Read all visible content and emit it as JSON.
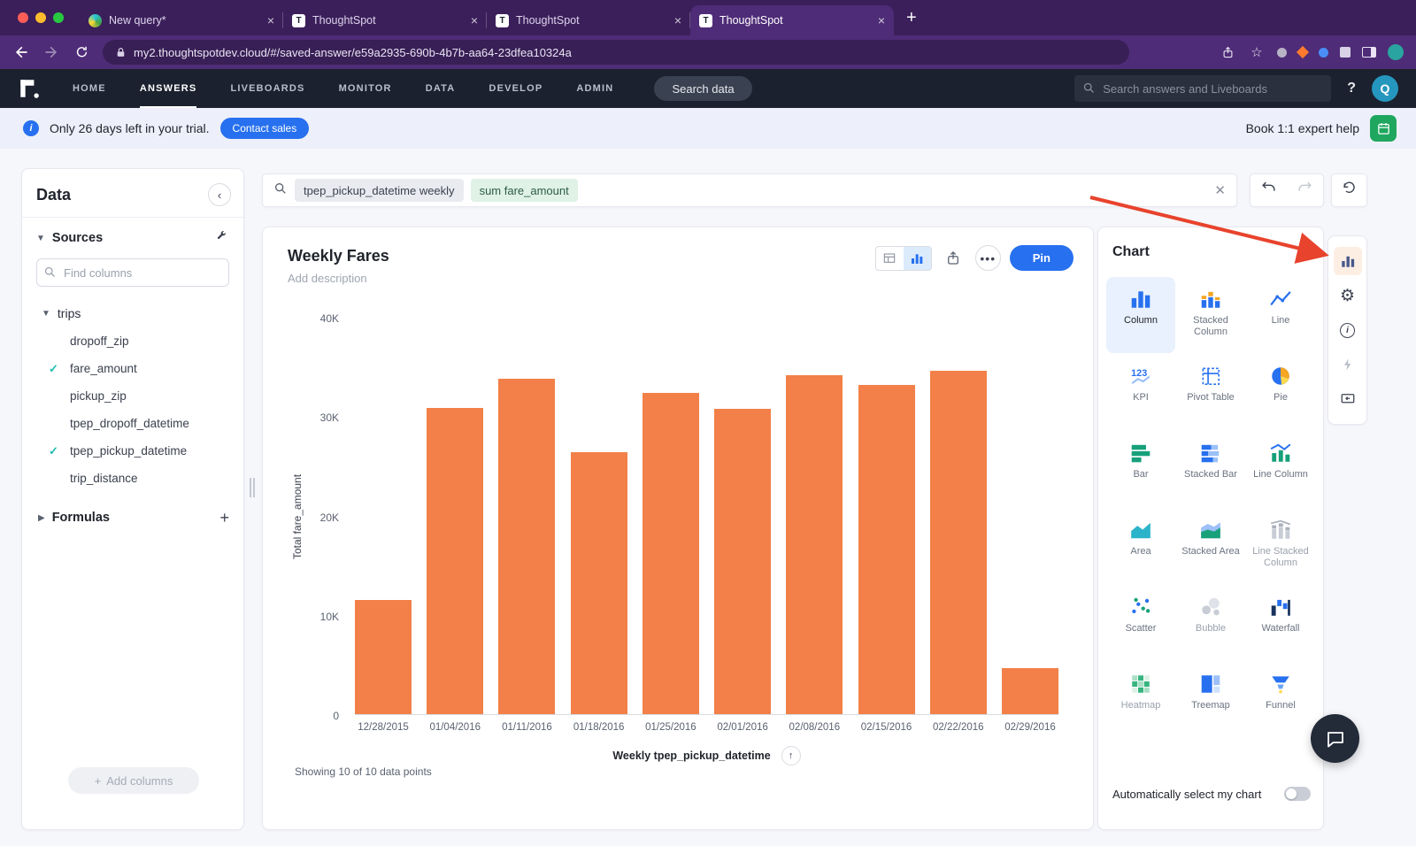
{
  "colors": {
    "accent": "#2770ef",
    "bar": "#f28048",
    "check": "#1fbcaf",
    "arrow": "#e8432d",
    "selected_bg": "#e8f1fd"
  },
  "browser": {
    "tabs": [
      {
        "title": "New query*",
        "icon": "query",
        "active": false
      },
      {
        "title": "ThoughtSpot",
        "icon": "thoughtspot",
        "active": false
      },
      {
        "title": "ThoughtSpot",
        "icon": "thoughtspot",
        "active": false
      },
      {
        "title": "ThoughtSpot",
        "icon": "thoughtspot",
        "active": true
      }
    ],
    "url": "my2.thoughtspotdev.cloud/#/saved-answer/e59a2935-690b-4b7b-aa64-23dfea10324a"
  },
  "nav": {
    "items": [
      {
        "label": "HOME",
        "active": false
      },
      {
        "label": "ANSWERS",
        "active": true
      },
      {
        "label": "LIVEBOARDS",
        "active": false
      },
      {
        "label": "MONITOR",
        "active": false
      },
      {
        "label": "DATA",
        "active": false
      },
      {
        "label": "DEVELOP",
        "active": false
      },
      {
        "label": "ADMIN",
        "active": false
      }
    ],
    "search_data_label": "Search data",
    "global_search_placeholder": "Search answers and Liveboards",
    "avatar_initial": "Q"
  },
  "trial": {
    "message": "Only 26 days left in your trial.",
    "cta": "Contact sales",
    "help": "Book 1:1 expert help"
  },
  "sidebar": {
    "title": "Data",
    "sources_label": "Sources",
    "find_placeholder": "Find columns",
    "table_name": "trips",
    "columns": [
      {
        "name": "dropoff_zip",
        "checked": false
      },
      {
        "name": "fare_amount",
        "checked": true
      },
      {
        "name": "pickup_zip",
        "checked": false
      },
      {
        "name": "tpep_dropoff_datetime",
        "checked": false
      },
      {
        "name": "tpep_pickup_datetime",
        "checked": true
      },
      {
        "name": "trip_distance",
        "checked": false
      }
    ],
    "formulas_label": "Formulas",
    "add_columns_label": "Add columns"
  },
  "query": {
    "tokens": [
      {
        "text": "tpep_pickup_datetime weekly",
        "type": "attribute"
      },
      {
        "text": "sum fare_amount",
        "type": "measure"
      }
    ]
  },
  "answer": {
    "title": "Weekly Fares",
    "description_placeholder": "Add description",
    "pin_label": "Pin",
    "footer": "Showing 10 of 10 data points"
  },
  "chart_data": {
    "type": "bar",
    "title": "Weekly Fares",
    "categories": [
      "12/28/2015",
      "01/04/2016",
      "01/11/2016",
      "01/18/2016",
      "01/25/2016",
      "02/01/2016",
      "02/08/2016",
      "02/15/2016",
      "02/22/2016",
      "02/29/2016"
    ],
    "values": [
      11500,
      30800,
      33800,
      26400,
      32300,
      30700,
      34100,
      33100,
      34600,
      4600
    ],
    "xlabel": "Weekly tpep_pickup_datetime",
    "ylabel": "Total fare_amount",
    "ylim": [
      0,
      40000
    ],
    "yticks": [
      {
        "v": 0,
        "label": "0"
      },
      {
        "v": 10000,
        "label": "10K"
      },
      {
        "v": 20000,
        "label": "20K"
      },
      {
        "v": 30000,
        "label": "30K"
      },
      {
        "v": 40000,
        "label": "40K"
      }
    ],
    "bar_color": "#f28048",
    "grid": false,
    "legend": false
  },
  "chart_panel": {
    "title": "Chart",
    "types": [
      {
        "label": "Column",
        "icon": "column",
        "selected": true,
        "disabled": false
      },
      {
        "label": "Stacked Column",
        "icon": "stacked-column",
        "selected": false,
        "disabled": false
      },
      {
        "label": "Line",
        "icon": "line",
        "selected": false,
        "disabled": false
      },
      {
        "label": "KPI",
        "icon": "kpi",
        "selected": false,
        "disabled": false
      },
      {
        "label": "Pivot Table",
        "icon": "pivot",
        "selected": false,
        "disabled": false
      },
      {
        "label": "Pie",
        "icon": "pie",
        "selected": false,
        "disabled": false
      },
      {
        "label": "Bar",
        "icon": "bar",
        "selected": false,
        "disabled": false
      },
      {
        "label": "Stacked Bar",
        "icon": "stacked-bar",
        "selected": false,
        "disabled": false
      },
      {
        "label": "Line Column",
        "icon": "line-column",
        "selected": false,
        "disabled": false
      },
      {
        "label": "Area",
        "icon": "area",
        "selected": false,
        "disabled": false
      },
      {
        "label": "Stacked Area",
        "icon": "stacked-area",
        "selected": false,
        "disabled": false
      },
      {
        "label": "Line Stacked Column",
        "icon": "line-stacked-column",
        "selected": false,
        "disabled": true
      },
      {
        "label": "Scatter",
        "icon": "scatter",
        "selected": false,
        "disabled": false
      },
      {
        "label": "Bubble",
        "icon": "bubble",
        "selected": false,
        "disabled": true
      },
      {
        "label": "Waterfall",
        "icon": "waterfall",
        "selected": false,
        "disabled": false
      },
      {
        "label": "Heatmap",
        "icon": "heatmap",
        "selected": false,
        "disabled": true
      },
      {
        "label": "Treemap",
        "icon": "treemap",
        "selected": false,
        "disabled": false
      },
      {
        "label": "Funnel",
        "icon": "funnel",
        "selected": false,
        "disabled": false
      }
    ],
    "auto_select_label": "Automatically select my chart",
    "auto_select_on": false
  }
}
